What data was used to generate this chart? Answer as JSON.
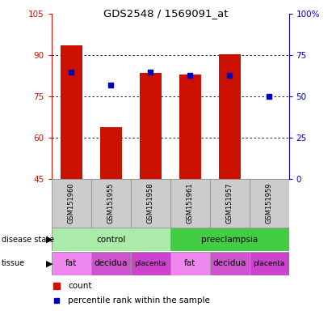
{
  "title": "GDS2548 / 1569091_at",
  "samples": [
    "GSM151960",
    "GSM151955",
    "GSM151958",
    "GSM151961",
    "GSM151957",
    "GSM151959"
  ],
  "count_values": [
    93.5,
    64.0,
    83.5,
    83.0,
    90.5,
    45.2
  ],
  "percentile_pct": [
    65,
    57,
    65,
    63,
    63,
    50
  ],
  "ylim_left": [
    45,
    105
  ],
  "ylim_right": [
    0,
    100
  ],
  "yticks_left": [
    45,
    60,
    75,
    90,
    105
  ],
  "yticks_right": [
    0,
    25,
    50,
    75,
    100
  ],
  "ytick_labels_left": [
    "45",
    "60",
    "75",
    "90",
    "105"
  ],
  "ytick_labels_right": [
    "0",
    "25",
    "50",
    "75",
    "100%"
  ],
  "disease_state": [
    {
      "label": "control",
      "span": [
        0,
        3
      ],
      "color": "#AAEAAA"
    },
    {
      "label": "preeclampsia",
      "span": [
        3,
        6
      ],
      "color": "#44CC44"
    }
  ],
  "tissue": [
    {
      "label": "fat",
      "span": [
        0,
        1
      ],
      "color": "#EE88EE"
    },
    {
      "label": "decidua",
      "span": [
        1,
        2
      ],
      "color": "#CC55CC"
    },
    {
      "label": "placenta",
      "span": [
        2,
        3
      ],
      "color": "#CC44CC"
    },
    {
      "label": "fat",
      "span": [
        3,
        4
      ],
      "color": "#EE88EE"
    },
    {
      "label": "decidua",
      "span": [
        4,
        5
      ],
      "color": "#CC55CC"
    },
    {
      "label": "placenta",
      "span": [
        5,
        6
      ],
      "color": "#CC44CC"
    }
  ],
  "bar_color": "#CC1100",
  "dot_color": "#0000BB",
  "bar_bottom": 45,
  "bar_width": 0.55,
  "left_axis_color": "#CC1100",
  "right_axis_color": "#0000BB",
  "sample_box_color": "#CCCCCC",
  "plot_bg": "#FFFFFF"
}
